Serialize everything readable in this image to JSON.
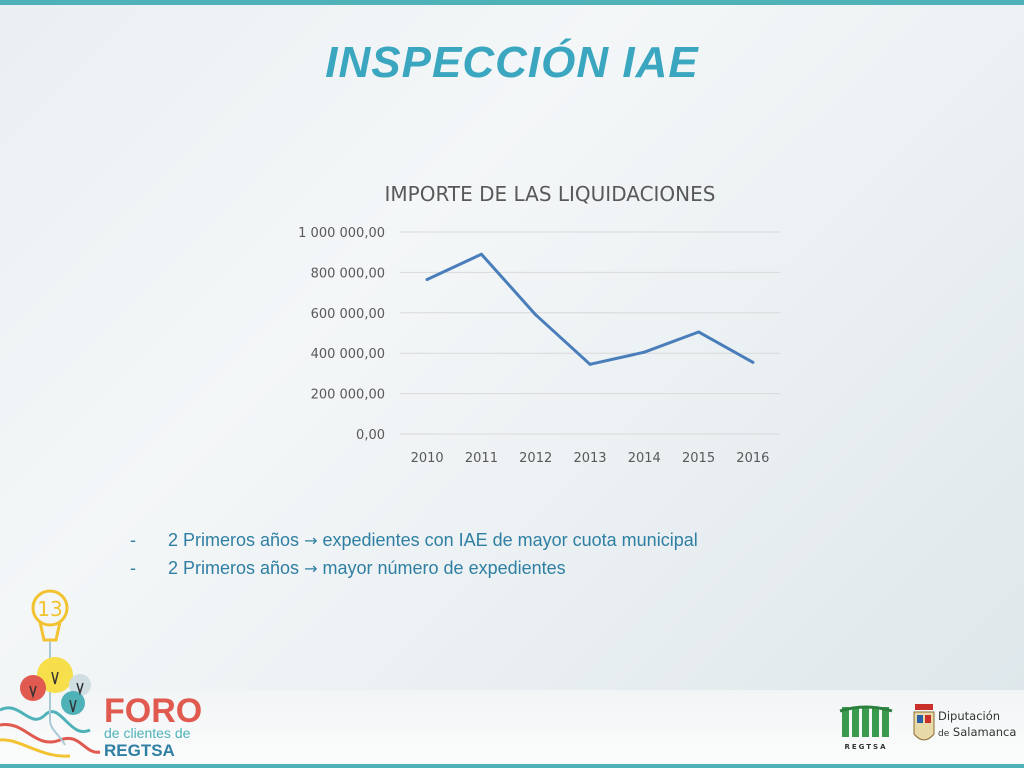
{
  "slide": {
    "title": "INSPECCIÓN  IAE"
  },
  "bullets": [
    {
      "dash": "-",
      "before": "2 Primeros años",
      "arrow": "→",
      "after": "expedientes con IAE de mayor cuota municipal"
    },
    {
      "dash": "-",
      "before": "2 Primeros años",
      "arrow": "→",
      "after": "mayor número de expedientes"
    }
  ],
  "logos": {
    "foro": {
      "number": "13",
      "line1": "FORO",
      "line2": "de clientes de",
      "line3": "REGTSA"
    },
    "regtsa": {
      "text": "REGTSA"
    },
    "diputacion": {
      "line1": "Diputación",
      "line2_prefix": "de",
      "line2": "Salamanca"
    }
  },
  "colors": {
    "title": "#3aa6bf",
    "series": "#4a7ebb",
    "grid": "#d9d9d9",
    "bullets": "#2f7fa3",
    "accent_bar": "#4fb2b8"
  },
  "chart_data": {
    "type": "line",
    "title": "IMPORTE DE LAS LIQUIDACIONES",
    "categories": [
      "2010",
      "2011",
      "2012",
      "2013",
      "2014",
      "2015",
      "2016"
    ],
    "series": [
      {
        "values": [
          765000,
          890000,
          590000,
          345000,
          405000,
          505000,
          355000
        ]
      }
    ],
    "ylim": [
      0,
      1000000
    ],
    "yticks": [
      0,
      200000,
      400000,
      600000,
      800000,
      1000000
    ],
    "ytick_labels": [
      "0,00",
      "200 000,00",
      "400 000,00",
      "600 000,00",
      "800 000,00",
      "1 000 000,00"
    ],
    "grid": true,
    "legend": "none",
    "xlabel": "",
    "ylabel": ""
  }
}
